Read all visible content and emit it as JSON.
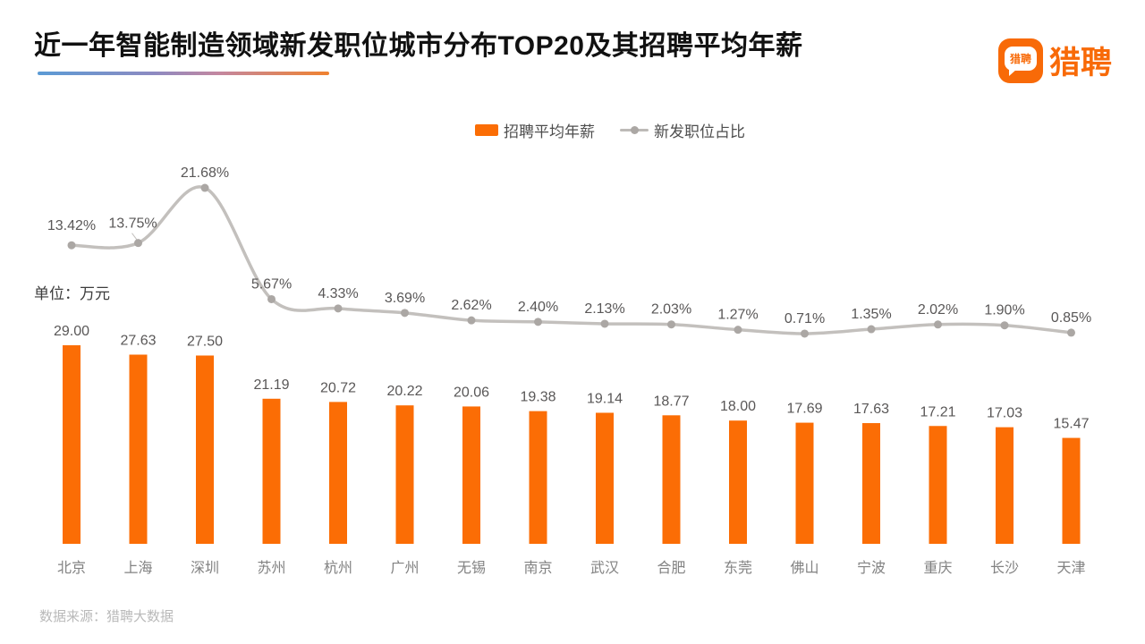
{
  "header": {
    "title": "近一年智能制造领域新发职位城市分布TOP20及其招聘平均年薪",
    "logo": {
      "bubble_text": "猎聘",
      "brand_text": "猎聘"
    }
  },
  "legend": {
    "bar_label": "招聘平均年薪",
    "line_label": "新发职位占比"
  },
  "chart": {
    "unit_label": "单位：万元"
  },
  "footer": {
    "source": "数据来源：猎聘大数据"
  },
  "colors": {
    "bar": "#fb6d05",
    "line": "#c3c0bd",
    "dot": "#aba7a4",
    "value_label": "#595757",
    "pct_label": "#595757",
    "city_label": "#828282",
    "brand_orange": "#f86a08",
    "source_text": "#b9b9b9"
  },
  "chart_data": {
    "type": "bar",
    "title": "近一年智能制造领域新发职位城市分布TOP20及其招聘平均年薪",
    "categories": [
      "北京",
      "上海",
      "深圳",
      "苏州",
      "杭州",
      "广州",
      "无锡",
      "南京",
      "武汉",
      "合肥",
      "东莞",
      "佛山",
      "宁波",
      "重庆",
      "长沙",
      "天津"
    ],
    "series": [
      {
        "name": "招聘平均年薪",
        "chart": "bar",
        "unit": "万元",
        "values": [
          29.0,
          27.63,
          27.5,
          21.19,
          20.72,
          20.22,
          20.06,
          19.38,
          19.14,
          18.77,
          18.0,
          17.69,
          17.63,
          17.21,
          17.03,
          15.47
        ]
      },
      {
        "name": "新发职位占比",
        "chart": "line",
        "unit": "%",
        "values": [
          13.42,
          13.75,
          21.68,
          5.67,
          4.33,
          3.69,
          2.62,
          2.4,
          2.13,
          2.03,
          1.27,
          0.71,
          1.35,
          2.02,
          1.9,
          0.85
        ]
      }
    ],
    "value_labels": true,
    "grid": false,
    "legend_position": "top-center",
    "bar_axis_range": [
      0,
      29
    ],
    "line_axis_range": [
      0,
      22
    ]
  }
}
